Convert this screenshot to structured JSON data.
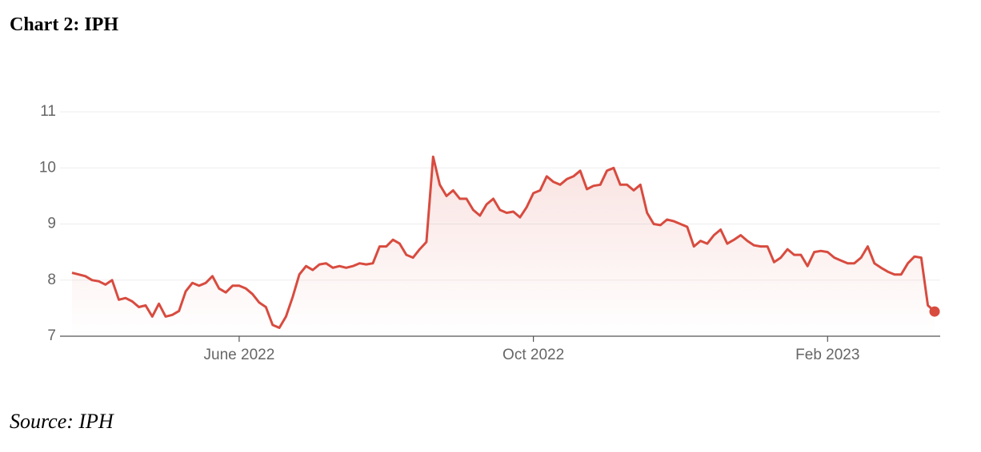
{
  "chart_data": {
    "type": "line",
    "title": "Chart 2: IPH",
    "source": "Source: IPH",
    "categories": [
      null,
      null,
      null,
      null,
      null,
      null,
      null,
      null,
      null,
      null,
      null,
      null,
      null,
      null,
      null,
      null,
      null,
      null,
      null,
      null,
      null,
      null,
      null,
      null,
      null,
      "June 2022",
      null,
      null,
      null,
      null,
      null,
      null,
      null,
      null,
      null,
      null,
      null,
      null,
      null,
      null,
      null,
      null,
      null,
      null,
      null,
      null,
      null,
      null,
      null,
      null,
      null,
      null,
      null,
      null,
      null,
      null,
      null,
      null,
      null,
      null,
      null,
      null,
      null,
      null,
      null,
      null,
      null,
      null,
      null,
      "Oct 2022",
      null,
      null,
      null,
      null,
      null,
      null,
      null,
      null,
      null,
      null,
      null,
      null,
      null,
      null,
      null,
      null,
      null,
      null,
      null,
      null,
      null,
      null,
      null,
      null,
      null,
      null,
      null,
      null,
      null,
      null,
      null,
      null,
      null,
      null,
      null,
      null,
      null,
      null,
      null,
      null,
      null,
      null,
      null,
      "Feb 2023",
      null,
      null,
      null,
      null,
      null,
      null,
      null,
      null,
      null,
      null,
      null,
      null,
      null,
      null,
      null,
      null
    ],
    "series": [
      {
        "name": "IPH",
        "color": "#d84b3f",
        "values": [
          8.13,
          8.1,
          8.07,
          8.0,
          7.98,
          7.92,
          8.0,
          7.65,
          7.68,
          7.62,
          7.52,
          7.55,
          7.35,
          7.58,
          7.35,
          7.38,
          7.45,
          7.8,
          7.95,
          7.9,
          7.95,
          8.07,
          7.85,
          7.78,
          7.9,
          7.9,
          7.85,
          7.75,
          7.6,
          7.52,
          7.2,
          7.15,
          7.35,
          7.7,
          8.1,
          8.25,
          8.18,
          8.28,
          8.3,
          8.22,
          8.25,
          8.22,
          8.25,
          8.3,
          8.28,
          8.3,
          8.6,
          8.6,
          8.72,
          8.65,
          8.45,
          8.4,
          8.55,
          8.68,
          10.2,
          9.7,
          9.5,
          9.6,
          9.45,
          9.45,
          9.25,
          9.15,
          9.35,
          9.45,
          9.25,
          9.2,
          9.22,
          9.12,
          9.3,
          9.55,
          9.6,
          9.85,
          9.75,
          9.7,
          9.8,
          9.85,
          9.95,
          9.62,
          9.68,
          9.7,
          9.95,
          10.0,
          9.7,
          9.7,
          9.6,
          9.7,
          9.2,
          9.0,
          8.98,
          9.08,
          9.05,
          9.0,
          8.95,
          8.6,
          8.7,
          8.65,
          8.8,
          8.9,
          8.65,
          8.72,
          8.8,
          8.7,
          8.62,
          8.6,
          8.6,
          8.32,
          8.4,
          8.55,
          8.45,
          8.45,
          8.25,
          8.5,
          8.52,
          8.5,
          8.4,
          8.35,
          8.3,
          8.3,
          8.4,
          8.6,
          8.3,
          8.22,
          8.15,
          8.1,
          8.1,
          8.3,
          8.42,
          8.4,
          7.55,
          7.44
        ]
      }
    ],
    "ylim": [
      7,
      11
    ],
    "yticks": [
      7,
      8,
      9,
      10,
      11
    ],
    "grid": true
  }
}
